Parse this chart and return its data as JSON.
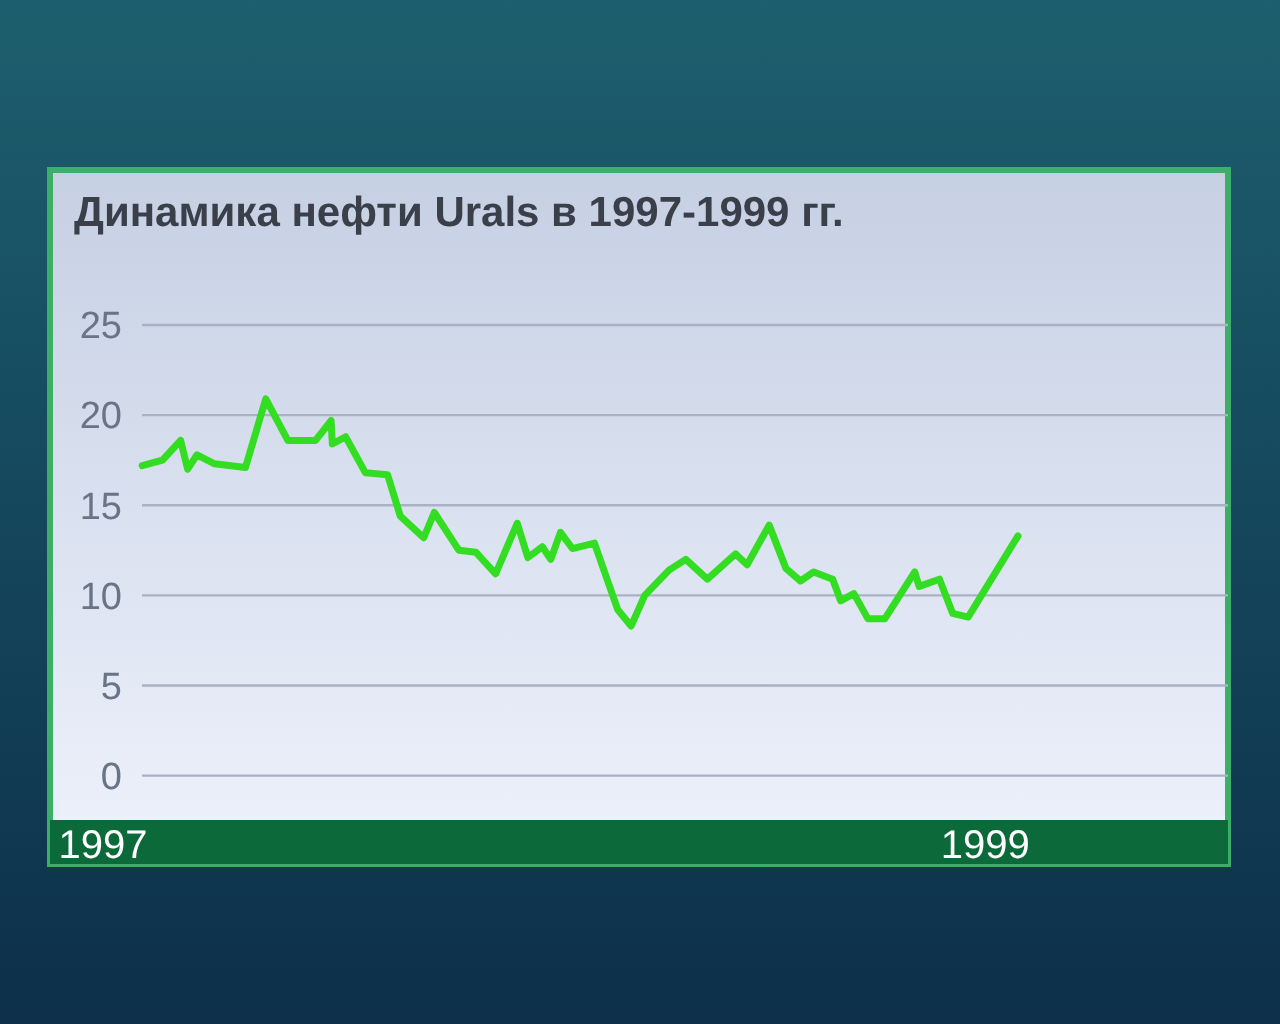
{
  "chart_data": {
    "type": "line",
    "title": "Динамика нефти Urals в 1997-1999 гг.",
    "x": [
      1997.089,
      1997.135,
      1997.176,
      1997.192,
      1997.213,
      1997.253,
      1997.323,
      1997.369,
      1997.419,
      1997.482,
      1997.517,
      1997.52,
      1997.55,
      1997.595,
      1997.645,
      1997.674,
      1997.727,
      1997.751,
      1997.807,
      1997.845,
      1997.89,
      1997.939,
      1997.963,
      1997.996,
      1998.015,
      1998.037,
      1998.064,
      1998.114,
      1998.167,
      1998.197,
      1998.228,
      1998.283,
      1998.321,
      1998.37,
      1998.434,
      1998.46,
      1998.51,
      1998.548,
      1998.581,
      1998.611,
      1998.654,
      1998.672,
      1998.702,
      1998.734,
      1998.772,
      1998.84,
      1998.85,
      1998.896,
      1998.926,
      1998.961,
      1999.074
    ],
    "series": [
      {
        "color": "#33dd22",
        "values": [
          17.2,
          17.5,
          18.6,
          17.0,
          17.8,
          17.3,
          17.1,
          20.9,
          18.6,
          18.6,
          19.7,
          18.4,
          18.8,
          16.8,
          16.7,
          14.4,
          13.2,
          14.6,
          12.5,
          12.4,
          11.2,
          14.0,
          12.1,
          12.7,
          12.0,
          13.5,
          12.6,
          12.9,
          9.2,
          8.3,
          10.0,
          11.4,
          12.0,
          10.9,
          12.3,
          11.7,
          13.9,
          11.5,
          10.8,
          11.3,
          10.9,
          9.7,
          10.1,
          8.7,
          8.7,
          11.3,
          10.5,
          10.9,
          9.0,
          8.8,
          13.3
        ]
      }
    ],
    "xlim": [
      1996.88,
      1999.55
    ],
    "xticks": [
      1997,
      1999
    ],
    "ylim": [
      -4.9,
      33.6
    ],
    "yticks": [
      0,
      5,
      10,
      15,
      20,
      25
    ],
    "grid": "y",
    "line_style": "solid",
    "marker": "none"
  }
}
